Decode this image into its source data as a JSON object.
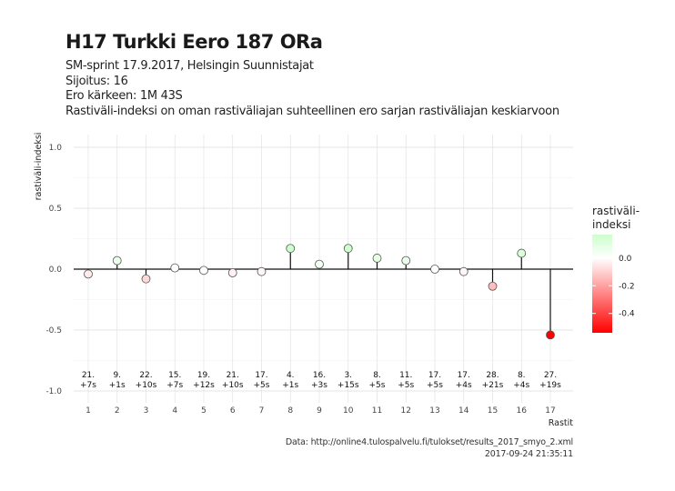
{
  "header": {
    "title": "H17 Turkki Eero 187 ORa",
    "subtitle_lines": [
      "SM-sprint 17.9.2017, Helsingin Suunnistajat",
      "Sijoitus: 16",
      "Ero kärkeen: 1M 43S",
      "Rastiväli-indeksi on oman rastiväliajan suhteellinen ero sarjan rastiväliajan keskiarvoon"
    ]
  },
  "caption": {
    "line1": "Data: http://online4.tulospalvelu.fi/tulokset/results_2017_smyo_2.xml",
    "line2": "2017-09-24 21:35:11"
  },
  "chart_data": {
    "type": "lollipop",
    "xlabel": "Rastit",
    "ylabel": "rastiväli-indeksi",
    "ylim": [
      -1.0,
      1.0
    ],
    "yticks": [
      "1.0",
      "0.5",
      "0.0",
      "-0.5",
      "-1.0"
    ],
    "ytick_values": [
      1.0,
      0.5,
      0.0,
      -0.5,
      -1.0
    ],
    "x": [
      1,
      2,
      3,
      4,
      5,
      6,
      7,
      8,
      9,
      10,
      11,
      12,
      13,
      14,
      15,
      16,
      17
    ],
    "xtick_labels": [
      "1",
      "2",
      "3",
      "4",
      "5",
      "6",
      "7",
      "8",
      "9",
      "10",
      "11",
      "12",
      "13",
      "14",
      "15",
      "16",
      "17"
    ],
    "values": [
      -0.04,
      0.07,
      -0.08,
      0.01,
      -0.01,
      -0.03,
      -0.02,
      0.17,
      0.04,
      0.17,
      0.09,
      0.07,
      0.0,
      -0.02,
      -0.14,
      0.13,
      -0.54
    ],
    "rank_labels": [
      "21.",
      "9.",
      "22.",
      "15.",
      "19.",
      "21.",
      "17.",
      "4.",
      "16.",
      "3.",
      "8.",
      "11.",
      "17.",
      "17.",
      "28.",
      "8.",
      "27."
    ],
    "diff_labels": [
      "+7s",
      "+1s",
      "+10s",
      "+7s",
      "+12s",
      "+10s",
      "+5s",
      "+1s",
      "+3s",
      "+15s",
      "+5s",
      "+5s",
      "+5s",
      "+4s",
      "+21s",
      "+4s",
      "+19s"
    ],
    "grid": true,
    "legend": {
      "title_lines": [
        "rastiväli-",
        "indeksi"
      ],
      "ticks": [
        "0.0",
        "-0.2",
        "-0.4"
      ],
      "tick_values": [
        0.0,
        -0.2,
        -0.4
      ],
      "range": [
        -0.54,
        0.17
      ],
      "placement": "right",
      "colors": {
        "low": "#ff0000",
        "mid": "#ffffff",
        "high": "#ccffcc"
      }
    }
  }
}
